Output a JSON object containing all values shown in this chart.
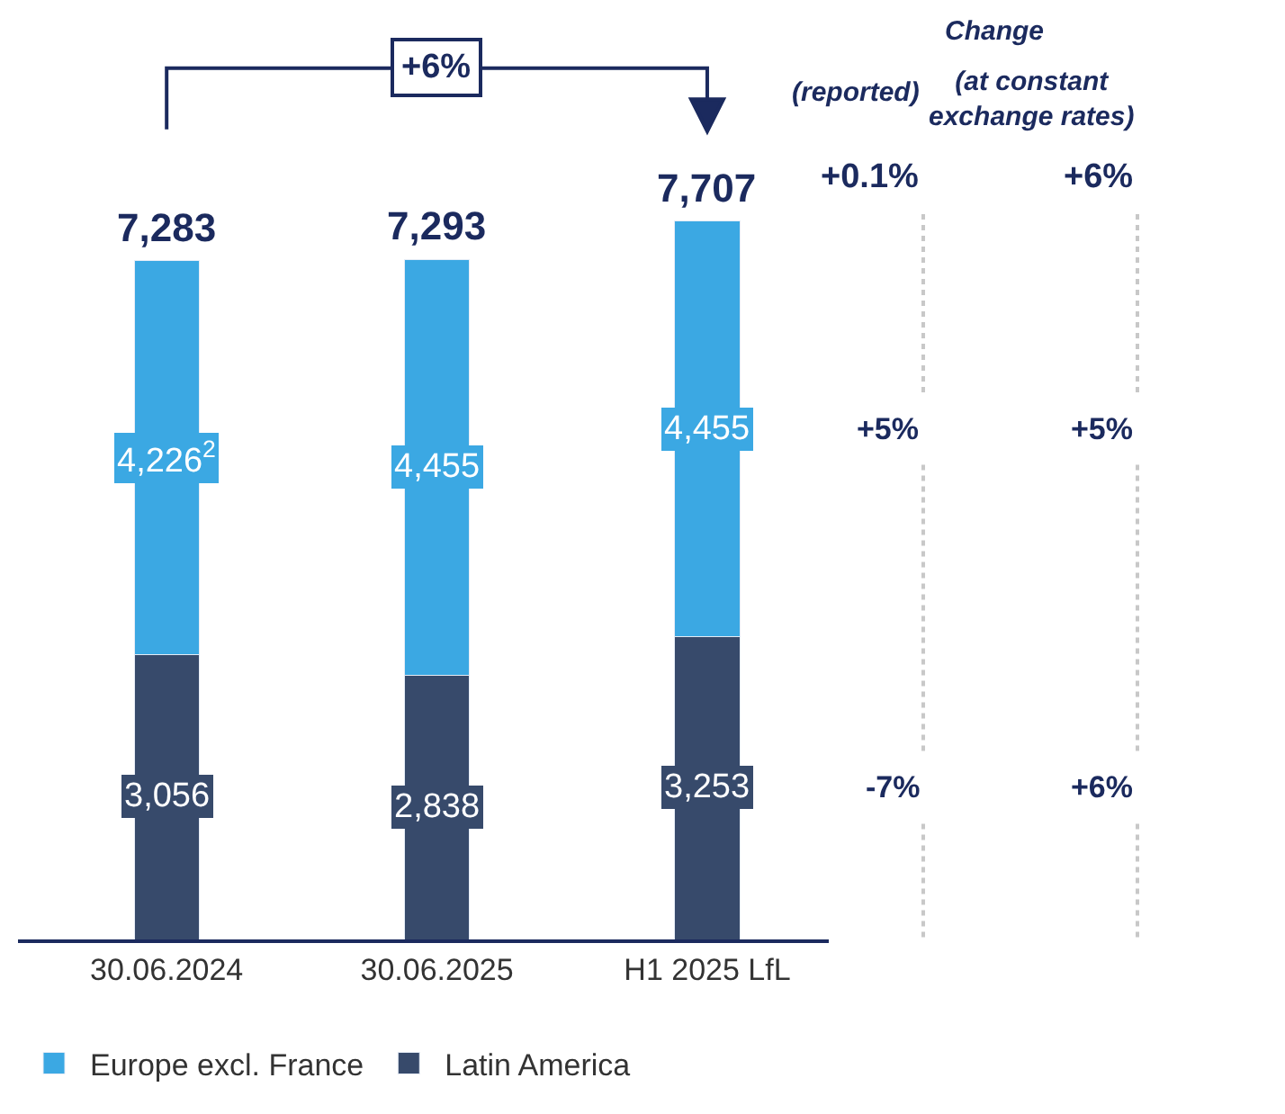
{
  "chart_data": {
    "type": "bar",
    "stacked": true,
    "categories": [
      "30.06.2024",
      "30.06.2025",
      "H1 2025 LfL"
    ],
    "series": [
      {
        "name": "Latin America",
        "color": "#374a6b",
        "values": [
          3056,
          2838,
          3253
        ],
        "value_labels": [
          "3,056",
          "2,838",
          "3,253"
        ]
      },
      {
        "name": "Europe excl. France",
        "color": "#3ba8e3",
        "values": [
          4226,
          4455,
          4455
        ],
        "value_labels": [
          "4,226$^{2}$",
          "4,455",
          "4,455"
        ]
      }
    ],
    "totals": [
      "7,283",
      "7,293",
      "7,707"
    ],
    "annotations": [
      "+6%",
      "Change",
      "(reported)",
      "(at constant\nexchange rates)",
      "+0.1%",
      "+6%",
      "+5%",
      "+5%",
      "-7%",
      "+6%"
    ],
    "legend": "bottom",
    "grid": false,
    "tick_labels": "x"
  }
}
